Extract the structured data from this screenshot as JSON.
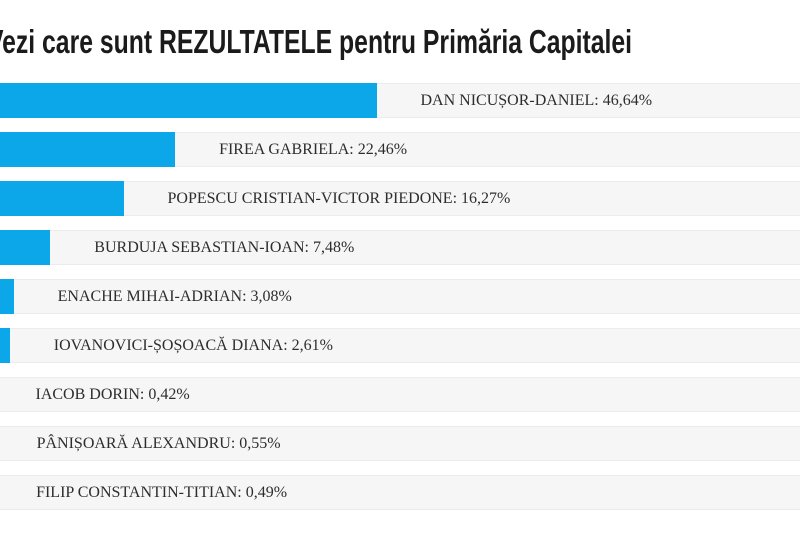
{
  "title": "Vezi care sunt REZULTATELE pentru Primăria Capitalei",
  "chart_data": {
    "type": "bar",
    "orientation": "horizontal",
    "title": "Vezi care sunt REZULTATELE pentru Primăria Capitalei",
    "unit": "%",
    "xlim": [
      0,
      100
    ],
    "grid": false,
    "legend": false,
    "bar_color": "#0ba7e8",
    "track_color": "#f6f6f6",
    "categories": [
      "DAN NICUȘOR-DANIEL",
      "FIREA GABRIELA",
      "POPESCU CRISTIAN-VICTOR PIEDONE",
      "BURDUJA SEBASTIAN-IOAN",
      "ENACHE MIHAI-ADRIAN",
      "IOVANOVICI-ȘOȘOACĂ DIANA",
      "IACOB DORIN",
      "PÂNIȘOARĂ ALEXANDRU",
      "FILIP CONSTANTIN-TITIAN"
    ],
    "values": [
      46.64,
      22.46,
      16.27,
      7.48,
      3.08,
      2.61,
      0.42,
      0.55,
      0.49
    ],
    "value_labels": [
      "46,64%",
      "22,46%",
      "16,27%",
      "7,48%",
      "3,08%",
      "2,61%",
      "0,42%",
      "0,55%",
      "0,49%"
    ],
    "row_labels": [
      "DAN NICUȘOR-DANIEL: 46,64%",
      "FIREA GABRIELA: 22,46%",
      "POPESCU CRISTIAN-VICTOR PIEDONE: 16,27%",
      "BURDUJA SEBASTIAN-IOAN: 7,48%",
      "ENACHE MIHAI-ADRIAN: 3,08%",
      "IOVANOVICI-ȘOȘOACĂ DIANA: 2,61%",
      "IACOB DORIN: 0,42%",
      "PÂNIȘOARĂ ALEXANDRU: 0,55%",
      "FILIP CONSTANTIN-TITIAN: 0,49%"
    ]
  }
}
